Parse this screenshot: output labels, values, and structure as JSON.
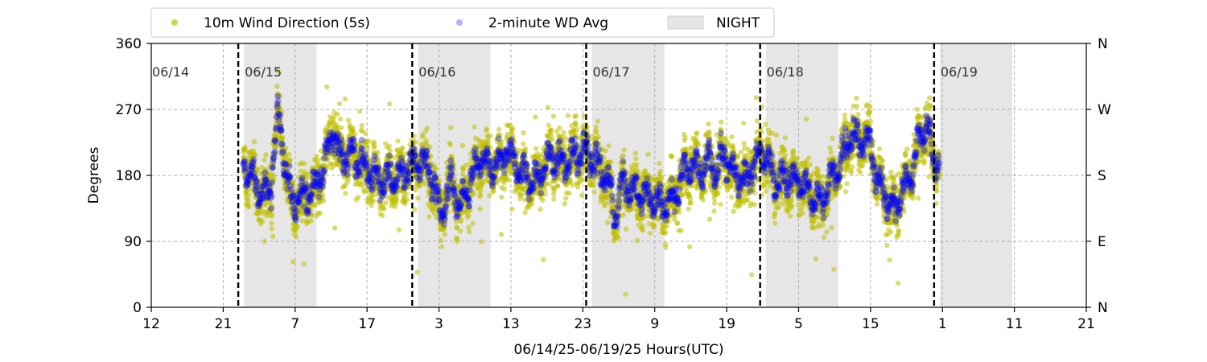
{
  "chart_data": {
    "type": "scatter",
    "xlabel": "06/14/25-06/19/25  Hours(UTC)",
    "ylabel": "Degrees",
    "ylim": [
      0,
      360
    ],
    "xlim_hours": [
      0,
      129
    ],
    "x_tick_labels": [
      "12",
      "21",
      "7",
      "17",
      "3",
      "13",
      "23",
      "9",
      "19",
      "5",
      "15",
      "1",
      "11",
      "21"
    ],
    "y_tick_values": [
      0,
      90,
      180,
      270,
      360
    ],
    "y_tick_labels": [
      "0",
      "90",
      "180",
      "270",
      "360"
    ],
    "right_tick_labels": [
      "N",
      "E",
      "S",
      "W",
      "N"
    ],
    "grid": true,
    "legend_position": "top",
    "legend": [
      {
        "name": "10m Wind Direction (5s)",
        "color": "#bfbf00",
        "style": "dot"
      },
      {
        "name": "2-minute WD Avg",
        "color": "#0000ff",
        "style": "dot"
      },
      {
        "name": "NIGHT",
        "color": "#e6e6e6",
        "style": "patch"
      }
    ],
    "day_labels": [
      "06/14",
      "06/15",
      "06/16",
      "06/17",
      "06/18",
      "06/19"
    ],
    "day_boundaries_hours": [
      12,
      36,
      60,
      84,
      108
    ],
    "night_spans_hours": [
      [
        12.8,
        22.8
      ],
      [
        36.8,
        46.8
      ],
      [
        60.8,
        70.8
      ],
      [
        84.8,
        94.8
      ],
      [
        108.8,
        118.8
      ]
    ],
    "data_start_hour": 12.7,
    "data_end_hour": 108.7,
    "avg_series_keypoints": [
      [
        12.7,
        195
      ],
      [
        14,
        175
      ],
      [
        15.5,
        150
      ],
      [
        16.5,
        165
      ],
      [
        17.5,
        270
      ],
      [
        18.5,
        190
      ],
      [
        19.5,
        140
      ],
      [
        21,
        150
      ],
      [
        22.5,
        165
      ],
      [
        24,
        195
      ],
      [
        25,
        245
      ],
      [
        26,
        205
      ],
      [
        28,
        210
      ],
      [
        29.5,
        190
      ],
      [
        31,
        175
      ],
      [
        33,
        175
      ],
      [
        34.5,
        180
      ],
      [
        36,
        195
      ],
      [
        37.5,
        200
      ],
      [
        38.5,
        185
      ],
      [
        40,
        125
      ],
      [
        41.5,
        175
      ],
      [
        42.5,
        130
      ],
      [
        44,
        170
      ],
      [
        45.5,
        205
      ],
      [
        47,
        185
      ],
      [
        49,
        215
      ],
      [
        51,
        185
      ],
      [
        53,
        170
      ],
      [
        55,
        205
      ],
      [
        57,
        195
      ],
      [
        59,
        210
      ],
      [
        60,
        215
      ],
      [
        61,
        205
      ],
      [
        62,
        185
      ],
      [
        63,
        175
      ],
      [
        64,
        125
      ],
      [
        65,
        170
      ],
      [
        66.5,
        160
      ],
      [
        68,
        155
      ],
      [
        70,
        140
      ],
      [
        72,
        145
      ],
      [
        73,
        175
      ],
      [
        74.5,
        195
      ],
      [
        76,
        185
      ],
      [
        77,
        205
      ],
      [
        78,
        180
      ],
      [
        79,
        215
      ],
      [
        80,
        185
      ],
      [
        82,
        175
      ],
      [
        84,
        210
      ],
      [
        85,
        200
      ],
      [
        86,
        170
      ],
      [
        88,
        180
      ],
      [
        90,
        165
      ],
      [
        91.5,
        150
      ],
      [
        92.5,
        140
      ],
      [
        93.5,
        170
      ],
      [
        95.5,
        210
      ],
      [
        96.5,
        235
      ],
      [
        97.5,
        230
      ],
      [
        99,
        230
      ],
      [
        100,
        180
      ],
      [
        101,
        155
      ],
      [
        102.5,
        135
      ],
      [
        104,
        165
      ],
      [
        105,
        185
      ],
      [
        106,
        230
      ],
      [
        107,
        250
      ],
      [
        108,
        195
      ],
      [
        108.7,
        200
      ]
    ]
  }
}
